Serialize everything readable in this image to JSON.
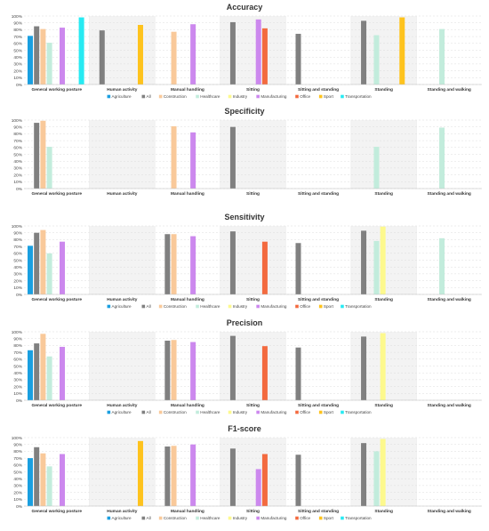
{
  "legend_colors": {
    "Agriculture": "#1a9fe0",
    "All": "#808080",
    "Construction": "#f9c99a",
    "Healthcare": "#c2ecdc",
    "Industry": "#fdf98d",
    "Manufacturing": "#cc88ee",
    "Office": "#f36a3f",
    "Sport": "#fec31d",
    "Transportation": "#27eaf2"
  },
  "chart_data": [
    {
      "type": "bar",
      "title": "Accuracy",
      "ylim": [
        0,
        100
      ],
      "yticks": [
        "0%",
        "10%",
        "20%",
        "30%",
        "40%",
        "50%",
        "60%",
        "70%",
        "80%",
        "90%",
        "100%"
      ],
      "categories": [
        "General working posture",
        "Human activity",
        "Manual handling",
        "Sitting",
        "Sitting and standing",
        "Standing",
        "Standing and walking"
      ],
      "legend": [
        "Agriculture",
        "All",
        "Construction",
        "Healthcare",
        "Industry",
        "Manufacturing",
        "Office",
        "Sport",
        "Transportation"
      ],
      "show_legend": true,
      "series": [
        {
          "name": "Agriculture",
          "values": [
            71,
            null,
            null,
            null,
            null,
            null,
            null
          ]
        },
        {
          "name": "All",
          "values": [
            85,
            79,
            null,
            91,
            74,
            93,
            null
          ]
        },
        {
          "name": "Construction",
          "values": [
            81,
            null,
            77,
            null,
            null,
            null,
            null
          ]
        },
        {
          "name": "Healthcare",
          "values": [
            61,
            null,
            null,
            null,
            null,
            72,
            81
          ]
        },
        {
          "name": "Industry",
          "values": [
            null,
            null,
            null,
            null,
            null,
            null,
            null
          ]
        },
        {
          "name": "Manufacturing",
          "values": [
            83,
            null,
            88,
            95,
            null,
            null,
            null
          ]
        },
        {
          "name": "Office",
          "values": [
            null,
            null,
            null,
            82,
            null,
            null,
            null
          ]
        },
        {
          "name": "Sport",
          "values": [
            null,
            87,
            null,
            null,
            null,
            98,
            null
          ]
        },
        {
          "name": "Transportation",
          "values": [
            98,
            null,
            null,
            null,
            null,
            null,
            null
          ]
        }
      ]
    },
    {
      "type": "bar",
      "title": "Specificity",
      "ylim": [
        0,
        100
      ],
      "yticks": [
        "0%",
        "10%",
        "20%",
        "30%",
        "40%",
        "50%",
        "60%",
        "70%",
        "80%",
        "90%",
        "100%"
      ],
      "categories": [
        "General working posture",
        "Human activity",
        "Manual handling",
        "Sitting",
        "Sitting and standing",
        "Standing",
        "Standing and walking"
      ],
      "legend": [],
      "show_legend": false,
      "series": [
        {
          "name": "Agriculture",
          "values": [
            null,
            null,
            null,
            null,
            null,
            null,
            null
          ]
        },
        {
          "name": "All",
          "values": [
            96,
            null,
            null,
            90,
            null,
            null,
            null
          ]
        },
        {
          "name": "Construction",
          "values": [
            99,
            null,
            91,
            null,
            null,
            null,
            null
          ]
        },
        {
          "name": "Healthcare",
          "values": [
            61,
            null,
            null,
            null,
            null,
            61,
            89
          ]
        },
        {
          "name": "Industry",
          "values": [
            null,
            null,
            null,
            null,
            null,
            null,
            null
          ]
        },
        {
          "name": "Manufacturing",
          "values": [
            null,
            null,
            82,
            null,
            null,
            null,
            null
          ]
        },
        {
          "name": "Office",
          "values": [
            null,
            null,
            null,
            null,
            null,
            null,
            null
          ]
        },
        {
          "name": "Sport",
          "values": [
            null,
            null,
            null,
            null,
            null,
            null,
            null
          ]
        },
        {
          "name": "Transportation",
          "values": [
            null,
            null,
            null,
            null,
            null,
            null,
            null
          ]
        }
      ]
    },
    {
      "type": "bar",
      "title": "Sensitivity",
      "ylim": [
        0,
        100
      ],
      "yticks": [
        "0%",
        "10%",
        "20%",
        "30%",
        "40%",
        "50%",
        "60%",
        "70%",
        "80%",
        "90%",
        "100%"
      ],
      "categories": [
        "General working posture",
        "Human activity",
        "Manual handling",
        "Sitting",
        "Sitting and standing",
        "Standing",
        "Standing and walking"
      ],
      "legend": [
        "Agriculture",
        "All",
        "Construction",
        "Healthcare",
        "Industry",
        "Manufacturing",
        "Office",
        "Sport",
        "Transportation"
      ],
      "show_legend": true,
      "series": [
        {
          "name": "Agriculture",
          "values": [
            71,
            null,
            null,
            null,
            null,
            null,
            null
          ]
        },
        {
          "name": "All",
          "values": [
            90,
            null,
            88,
            92,
            75,
            93,
            null
          ]
        },
        {
          "name": "Construction",
          "values": [
            94,
            null,
            88,
            null,
            null,
            null,
            null
          ]
        },
        {
          "name": "Healthcare",
          "values": [
            60,
            null,
            null,
            null,
            null,
            78,
            82
          ]
        },
        {
          "name": "Industry",
          "values": [
            null,
            null,
            null,
            null,
            null,
            99,
            null
          ]
        },
        {
          "name": "Manufacturing",
          "values": [
            77,
            null,
            85,
            null,
            null,
            null,
            null
          ]
        },
        {
          "name": "Office",
          "values": [
            null,
            null,
            null,
            77,
            null,
            null,
            null
          ]
        },
        {
          "name": "Sport",
          "values": [
            null,
            null,
            null,
            null,
            null,
            null,
            null
          ]
        },
        {
          "name": "Transportation",
          "values": [
            null,
            null,
            null,
            null,
            null,
            null,
            null
          ]
        }
      ]
    },
    {
      "type": "bar",
      "title": "Precision",
      "ylim": [
        0,
        100
      ],
      "yticks": [
        "0%",
        "10%",
        "20%",
        "30%",
        "40%",
        "50%",
        "60%",
        "70%",
        "80%",
        "90%",
        "100%"
      ],
      "categories": [
        "General working posture",
        "Human activity",
        "Manual handling",
        "Sitting",
        "Sitting and standing",
        "Standing",
        "Standing and walking"
      ],
      "legend": [
        "Agriculture",
        "All",
        "Construction",
        "Healthcare",
        "Industry",
        "Manufacturing",
        "Office",
        "Sport",
        "Transportation"
      ],
      "show_legend": true,
      "series": [
        {
          "name": "Agriculture",
          "values": [
            73,
            null,
            null,
            null,
            null,
            null,
            null
          ]
        },
        {
          "name": "All",
          "values": [
            83,
            null,
            87,
            94,
            77,
            93,
            null
          ]
        },
        {
          "name": "Construction",
          "values": [
            97,
            null,
            88,
            null,
            null,
            null,
            null
          ]
        },
        {
          "name": "Healthcare",
          "values": [
            64,
            null,
            null,
            null,
            null,
            null,
            null
          ]
        },
        {
          "name": "Industry",
          "values": [
            null,
            null,
            null,
            null,
            null,
            98,
            null
          ]
        },
        {
          "name": "Manufacturing",
          "values": [
            78,
            null,
            85,
            null,
            null,
            null,
            null
          ]
        },
        {
          "name": "Office",
          "values": [
            null,
            null,
            null,
            79,
            null,
            null,
            null
          ]
        },
        {
          "name": "Sport",
          "values": [
            null,
            null,
            null,
            null,
            null,
            null,
            null
          ]
        },
        {
          "name": "Transportation",
          "values": [
            null,
            null,
            null,
            null,
            null,
            null,
            null
          ]
        }
      ]
    },
    {
      "type": "bar",
      "title": "F1-score",
      "ylim": [
        0,
        100
      ],
      "yticks": [
        "0%",
        "10%",
        "20%",
        "30%",
        "40%",
        "50%",
        "60%",
        "70%",
        "80%",
        "90%",
        "100%"
      ],
      "categories": [
        "General working posture",
        "Human activity",
        "Manual handling",
        "Sitting",
        "Sitting and standing",
        "Standing",
        "Standing and walking"
      ],
      "legend": [
        "Agriculture",
        "All",
        "Construction",
        "Healthcare",
        "Industry",
        "Manufacturing",
        "Office",
        "Sport",
        "Transportation"
      ],
      "show_legend": true,
      "series": [
        {
          "name": "Agriculture",
          "values": [
            70,
            null,
            null,
            null,
            null,
            null,
            null
          ]
        },
        {
          "name": "All",
          "values": [
            86,
            null,
            87,
            84,
            75,
            92,
            null
          ]
        },
        {
          "name": "Construction",
          "values": [
            77,
            null,
            88,
            null,
            null,
            null,
            null
          ]
        },
        {
          "name": "Healthcare",
          "values": [
            58,
            null,
            null,
            null,
            null,
            80,
            null
          ]
        },
        {
          "name": "Industry",
          "values": [
            null,
            null,
            null,
            null,
            null,
            98,
            null
          ]
        },
        {
          "name": "Manufacturing",
          "values": [
            76,
            null,
            90,
            54,
            null,
            null,
            null
          ]
        },
        {
          "name": "Office",
          "values": [
            null,
            null,
            null,
            76,
            null,
            null,
            null
          ]
        },
        {
          "name": "Sport",
          "values": [
            null,
            95,
            null,
            null,
            null,
            null,
            null
          ]
        },
        {
          "name": "Transportation",
          "values": [
            null,
            null,
            null,
            null,
            null,
            null,
            null
          ]
        }
      ]
    }
  ]
}
